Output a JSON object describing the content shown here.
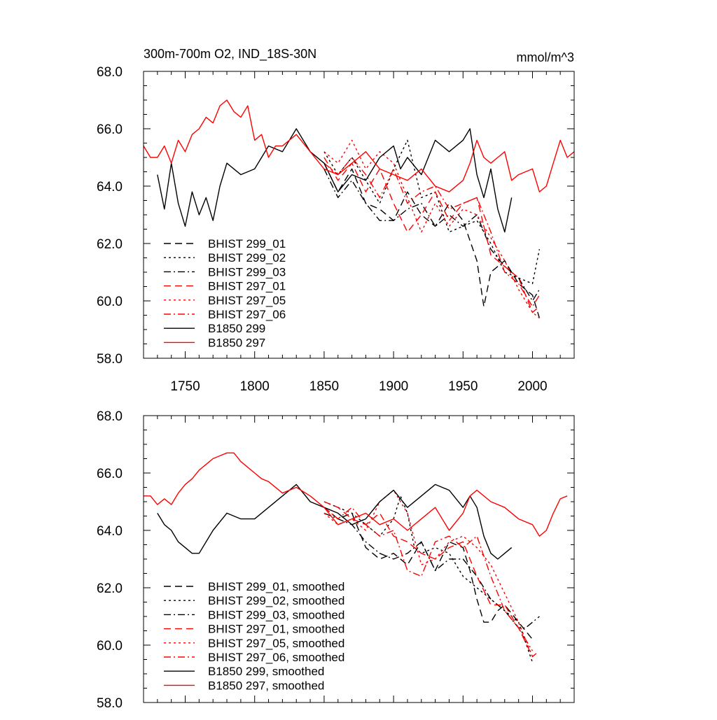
{
  "colors": {
    "black": "#000000",
    "red": "#ff0000"
  },
  "chart_data": [
    {
      "type": "line",
      "title": "300m-700m O2, IND_18S-30N",
      "units": "mmol/m^3",
      "xlim": [
        1720,
        2030
      ],
      "ylim": [
        58.0,
        68.0
      ],
      "yticks": [
        "58.0",
        "60.0",
        "62.0",
        "64.0",
        "66.0",
        "68.0"
      ],
      "xticks": [
        "1750",
        "1800",
        "1850",
        "1900",
        "1950",
        "2000"
      ],
      "legend": {
        "position": "lower-left"
      },
      "series": [
        {
          "name": "BHIST 299_01",
          "color": "#000000",
          "dash": "dash",
          "x": [
            1850,
            1860,
            1870,
            1880,
            1890,
            1900,
            1910,
            1920,
            1930,
            1940,
            1950,
            1960,
            1965,
            1970,
            1980,
            1990,
            2000,
            2005
          ],
          "y": [
            64.8,
            63.8,
            64.6,
            63.4,
            63.2,
            62.8,
            63.8,
            63.0,
            62.6,
            63.4,
            62.8,
            61.4,
            59.8,
            61.0,
            61.4,
            60.6,
            60.2,
            59.4
          ]
        },
        {
          "name": "BHIST 299_02",
          "color": "#000000",
          "dash": "dot",
          "x": [
            1850,
            1860,
            1870,
            1880,
            1890,
            1900,
            1910,
            1920,
            1930,
            1940,
            1950,
            1960,
            1970,
            1980,
            1990,
            2000,
            2005
          ],
          "y": [
            65.2,
            64.4,
            65.0,
            64.2,
            63.4,
            64.6,
            65.6,
            63.6,
            63.8,
            62.4,
            62.6,
            62.8,
            62.0,
            61.0,
            60.8,
            60.6,
            61.8
          ]
        },
        {
          "name": "BHIST 299_03",
          "color": "#000000",
          "dash": "dashdot",
          "x": [
            1850,
            1860,
            1870,
            1880,
            1890,
            1900,
            1910,
            1920,
            1930,
            1940,
            1950,
            1960,
            1970,
            1980,
            1990,
            2000,
            2005
          ],
          "y": [
            64.6,
            63.6,
            64.2,
            63.4,
            62.8,
            62.8,
            63.2,
            63.4,
            62.6,
            63.0,
            62.6,
            63.0,
            61.8,
            61.2,
            60.8,
            60.0,
            60.4
          ]
        },
        {
          "name": "BHIST 297_01",
          "color": "#ff0000",
          "dash": "dash",
          "x": [
            1850,
            1860,
            1870,
            1880,
            1890,
            1900,
            1910,
            1920,
            1930,
            1940,
            1950,
            1960,
            1970,
            1980,
            1990,
            2000,
            2005
          ],
          "y": [
            65.0,
            64.2,
            64.8,
            63.8,
            64.6,
            63.4,
            62.4,
            63.0,
            63.8,
            62.8,
            63.4,
            63.6,
            61.6,
            61.2,
            60.8,
            59.6,
            59.8
          ]
        },
        {
          "name": "BHIST 297_05",
          "color": "#ff0000",
          "dash": "dot",
          "x": [
            1850,
            1860,
            1870,
            1880,
            1890,
            1900,
            1910,
            1920,
            1930,
            1940,
            1950,
            1960,
            1970,
            1980,
            1990,
            2000,
            2005
          ],
          "y": [
            65.2,
            64.8,
            65.6,
            64.6,
            65.2,
            64.8,
            63.6,
            62.4,
            63.4,
            62.6,
            63.2,
            63.0,
            62.2,
            61.4,
            60.4,
            59.6,
            59.4
          ]
        },
        {
          "name": "BHIST 297_06",
          "color": "#ff0000",
          "dash": "dashdot",
          "x": [
            1850,
            1860,
            1870,
            1880,
            1890,
            1900,
            1910,
            1920,
            1930,
            1940,
            1950,
            1960,
            1970,
            1980,
            1990,
            2000,
            2005
          ],
          "y": [
            64.8,
            64.4,
            65.0,
            64.4,
            63.6,
            64.6,
            63.4,
            63.8,
            64.0,
            63.2,
            63.4,
            63.6,
            62.4,
            61.0,
            60.6,
            59.8,
            60.2
          ]
        },
        {
          "name": "B1850 299",
          "color": "#000000",
          "dash": "solid",
          "x": [
            1730,
            1735,
            1740,
            1745,
            1750,
            1755,
            1760,
            1765,
            1770,
            1775,
            1780,
            1790,
            1800,
            1810,
            1820,
            1830,
            1840,
            1850,
            1860,
            1870,
            1880,
            1890,
            1900,
            1905,
            1910,
            1920,
            1930,
            1940,
            1950,
            1955,
            1960,
            1965,
            1970,
            1975,
            1980,
            1985
          ],
          "y": [
            64.4,
            63.2,
            64.8,
            63.4,
            62.6,
            63.8,
            63.0,
            63.6,
            62.8,
            64.0,
            64.8,
            64.4,
            64.6,
            65.4,
            65.2,
            66.0,
            65.2,
            64.8,
            63.8,
            64.4,
            64.2,
            65.0,
            65.4,
            64.6,
            65.0,
            64.4,
            65.6,
            65.2,
            65.6,
            66.0,
            64.4,
            63.6,
            64.6,
            63.2,
            62.4,
            63.6
          ]
        },
        {
          "name": "B1850 297",
          "color": "#ff0000",
          "dash": "solid",
          "x": [
            1720,
            1725,
            1730,
            1735,
            1740,
            1745,
            1750,
            1755,
            1760,
            1765,
            1770,
            1775,
            1780,
            1785,
            1790,
            1795,
            1800,
            1805,
            1810,
            1815,
            1820,
            1830,
            1840,
            1850,
            1860,
            1870,
            1880,
            1890,
            1900,
            1910,
            1920,
            1930,
            1940,
            1950,
            1955,
            1960,
            1965,
            1970,
            1975,
            1980,
            1985,
            1990,
            2000,
            2005,
            2010,
            2015,
            2020,
            2025,
            2030
          ],
          "y": [
            65.4,
            65.0,
            65.0,
            65.4,
            64.8,
            65.6,
            65.2,
            65.8,
            66.0,
            66.4,
            66.2,
            66.8,
            67.0,
            66.6,
            66.4,
            66.8,
            65.6,
            65.8,
            65.0,
            65.4,
            65.4,
            65.8,
            65.2,
            64.6,
            64.4,
            64.8,
            65.2,
            64.6,
            64.4,
            64.2,
            64.6,
            64.0,
            63.8,
            64.2,
            64.8,
            65.6,
            65.0,
            64.8,
            65.0,
            65.2,
            64.2,
            64.4,
            64.6,
            63.8,
            64.0,
            64.8,
            65.6,
            65.0,
            65.2
          ]
        }
      ]
    },
    {
      "type": "line",
      "xlim": [
        1720,
        2030
      ],
      "ylim": [
        58.0,
        68.0
      ],
      "yticks": [
        "58.0",
        "60.0",
        "62.0",
        "64.0",
        "66.0",
        "68.0"
      ],
      "legend": {
        "position": "lower-left"
      },
      "series": [
        {
          "name": "BHIST 299_01, smoothed",
          "color": "#000000",
          "dash": "dash",
          "x": [
            1850,
            1860,
            1870,
            1880,
            1890,
            1900,
            1910,
            1920,
            1930,
            1940,
            1950,
            1955,
            1960,
            1965,
            1970,
            1975,
            1980,
            1990,
            2000
          ],
          "y": [
            64.8,
            64.4,
            64.6,
            63.4,
            63.0,
            63.2,
            62.8,
            63.6,
            62.6,
            63.6,
            63.4,
            62.6,
            61.6,
            60.8,
            60.8,
            61.2,
            61.4,
            60.8,
            60.2
          ]
        },
        {
          "name": "BHIST 299_02, smoothed",
          "color": "#000000",
          "dash": "dot",
          "x": [
            1850,
            1860,
            1870,
            1880,
            1890,
            1900,
            1905,
            1910,
            1915,
            1920,
            1930,
            1940,
            1950,
            1960,
            1970,
            1980,
            1990,
            2000
          ],
          "y": [
            65.0,
            64.8,
            64.6,
            64.2,
            63.8,
            64.4,
            65.2,
            64.6,
            63.4,
            63.2,
            63.4,
            63.2,
            62.4,
            62.0,
            61.6,
            61.2,
            60.8,
            59.4
          ]
        },
        {
          "name": "BHIST 299_03, smoothed",
          "color": "#000000",
          "dash": "dashdot",
          "x": [
            1850,
            1860,
            1870,
            1880,
            1890,
            1900,
            1910,
            1920,
            1930,
            1940,
            1950,
            1960,
            1970,
            1980,
            1990,
            1995,
            2000,
            2005
          ],
          "y": [
            64.6,
            64.4,
            64.2,
            63.6,
            63.2,
            63.0,
            63.2,
            63.6,
            62.6,
            63.0,
            63.0,
            62.4,
            61.6,
            61.2,
            60.6,
            60.6,
            60.8,
            61.0
          ]
        },
        {
          "name": "BHIST 297_01, smoothed",
          "color": "#ff0000",
          "dash": "dash",
          "x": [
            1850,
            1860,
            1870,
            1880,
            1890,
            1900,
            1910,
            1920,
            1930,
            1940,
            1950,
            1960,
            1970,
            1980,
            1990,
            2000,
            2005
          ],
          "y": [
            65.0,
            64.8,
            64.4,
            64.2,
            64.6,
            63.8,
            63.6,
            63.2,
            63.0,
            63.4,
            63.6,
            62.4,
            61.4,
            61.4,
            60.6,
            59.6,
            59.8
          ]
        },
        {
          "name": "BHIST 297_05, smoothed",
          "color": "#ff0000",
          "dash": "dot",
          "x": [
            1850,
            1860,
            1870,
            1880,
            1890,
            1900,
            1910,
            1920,
            1930,
            1940,
            1950,
            1960,
            1970,
            1980,
            1990,
            2000
          ],
          "y": [
            64.6,
            64.2,
            64.4,
            64.0,
            65.0,
            65.4,
            64.6,
            62.8,
            63.0,
            63.6,
            63.8,
            63.4,
            62.8,
            61.8,
            60.8,
            59.6
          ]
        },
        {
          "name": "BHIST 297_06, smoothed",
          "color": "#ff0000",
          "dash": "dashdot",
          "x": [
            1850,
            1860,
            1870,
            1880,
            1890,
            1900,
            1910,
            1920,
            1930,
            1940,
            1950,
            1960,
            1970,
            1980,
            1990,
            2000
          ],
          "y": [
            64.8,
            64.4,
            64.8,
            64.2,
            63.8,
            64.0,
            62.6,
            62.4,
            63.6,
            63.8,
            63.4,
            63.8,
            62.4,
            61.2,
            60.6,
            59.8
          ]
        },
        {
          "name": "B1850 299, smoothed",
          "color": "#000000",
          "dash": "solid",
          "x": [
            1730,
            1735,
            1740,
            1745,
            1750,
            1755,
            1760,
            1765,
            1770,
            1780,
            1790,
            1800,
            1810,
            1820,
            1830,
            1840,
            1850,
            1860,
            1870,
            1880,
            1890,
            1900,
            1910,
            1920,
            1930,
            1940,
            1950,
            1955,
            1960,
            1965,
            1970,
            1975,
            1980,
            1985
          ],
          "y": [
            64.6,
            64.2,
            64.0,
            63.6,
            63.4,
            63.2,
            63.2,
            63.6,
            64.0,
            64.6,
            64.4,
            64.4,
            64.8,
            65.2,
            65.6,
            65.0,
            64.8,
            64.6,
            64.2,
            64.4,
            65.0,
            65.4,
            64.8,
            65.2,
            65.6,
            65.4,
            64.8,
            65.2,
            64.8,
            63.8,
            63.2,
            63.0,
            63.2,
            63.4
          ]
        },
        {
          "name": "B1850 297, smoothed",
          "color": "#ff0000",
          "dash": "solid",
          "x": [
            1720,
            1725,
            1730,
            1735,
            1740,
            1745,
            1750,
            1755,
            1760,
            1765,
            1770,
            1775,
            1780,
            1785,
            1790,
            1795,
            1800,
            1805,
            1810,
            1820,
            1830,
            1840,
            1850,
            1860,
            1870,
            1880,
            1890,
            1900,
            1910,
            1920,
            1930,
            1940,
            1950,
            1955,
            1960,
            1970,
            1980,
            1990,
            2000,
            2005,
            2010,
            2015,
            2020,
            2025
          ],
          "y": [
            65.2,
            65.2,
            64.9,
            65.1,
            64.9,
            65.3,
            65.6,
            65.8,
            66.1,
            66.3,
            66.5,
            66.6,
            66.7,
            66.7,
            66.4,
            66.2,
            66.0,
            65.8,
            65.7,
            65.3,
            65.5,
            65.2,
            64.8,
            64.2,
            64.4,
            64.6,
            64.2,
            64.4,
            64.0,
            64.4,
            64.8,
            64.0,
            64.6,
            65.2,
            65.4,
            65.0,
            64.8,
            64.4,
            64.2,
            63.8,
            64.0,
            64.6,
            65.1,
            65.2
          ]
        }
      ]
    }
  ]
}
